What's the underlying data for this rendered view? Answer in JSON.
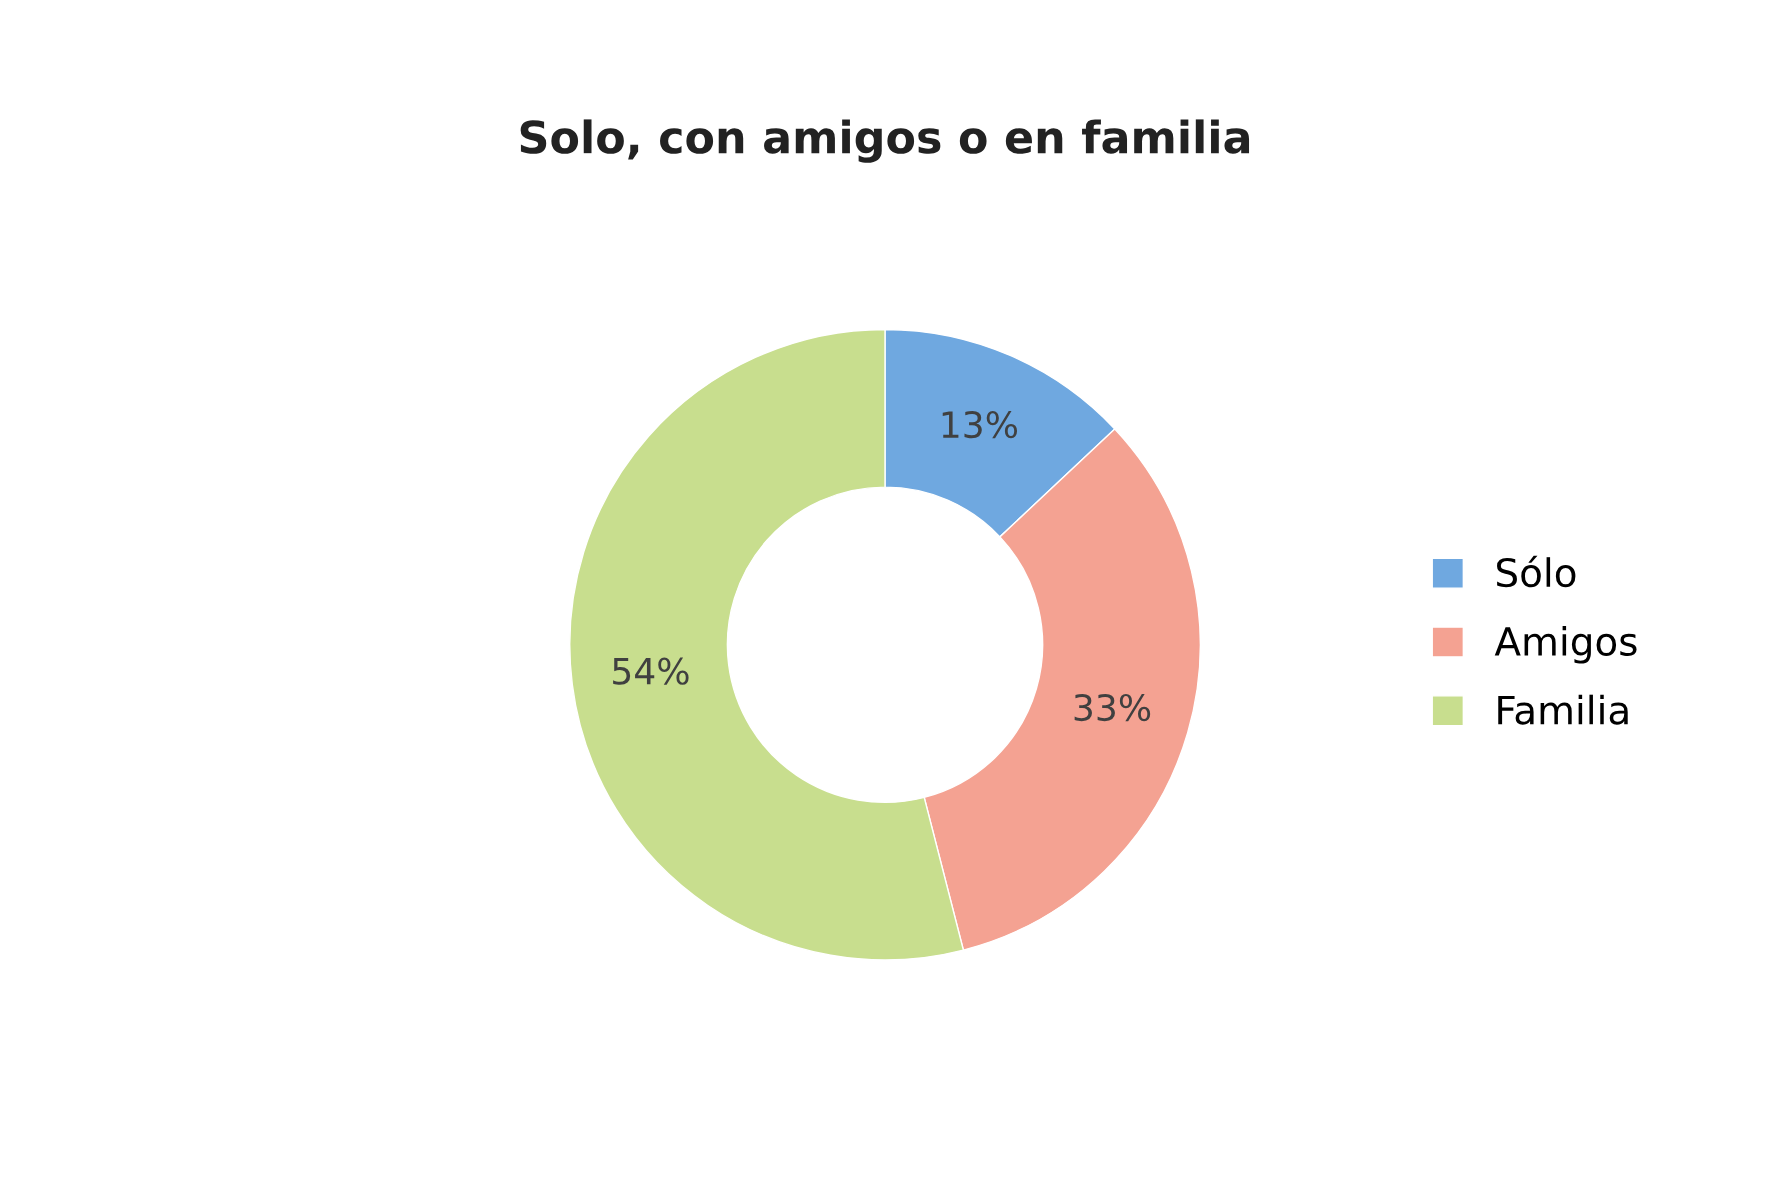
{
  "chart_data": {
    "type": "donut",
    "title": "Solo, con amigos o en familia",
    "categories": [
      "Sólo",
      "Amigos",
      "Familia"
    ],
    "values": [
      13,
      33,
      54
    ],
    "colors": [
      "#6fa8e0",
      "#f4a292",
      "#c8de8e"
    ],
    "value_labels": [
      "13%",
      "33%",
      "54%"
    ],
    "legend": "right"
  }
}
